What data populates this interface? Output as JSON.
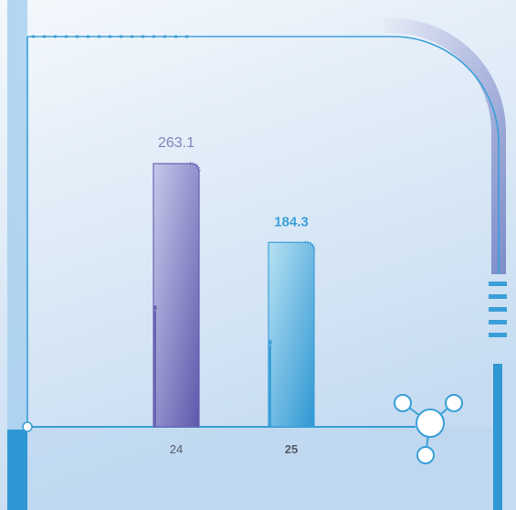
{
  "chart_data": {
    "type": "bar",
    "categories": [
      "24",
      "25"
    ],
    "values": [
      263.1,
      184.3
    ],
    "value_labels": [
      "263.1",
      "184.3"
    ],
    "title": "",
    "xlabel": "",
    "ylabel": "",
    "ylim": [
      0,
      350
    ],
    "grid": false,
    "legend": "none"
  },
  "colors": {
    "background_top": "#f3f7fc",
    "background_bottom": "#c6dcf2",
    "frame_line": "#3a9fd8",
    "frame_arc": "#8a9fd0",
    "bar1_top": "#b9c0e6",
    "bar1_bottom": "#6a63b2",
    "bar2_top": "#a8d9ef",
    "bar2_bottom": "#3a9fd8",
    "label1": "#7d86bd",
    "label2": "#3a9fd8",
    "tick_label": "#555a66"
  },
  "icons": {
    "decoration": "molecule-icon"
  }
}
